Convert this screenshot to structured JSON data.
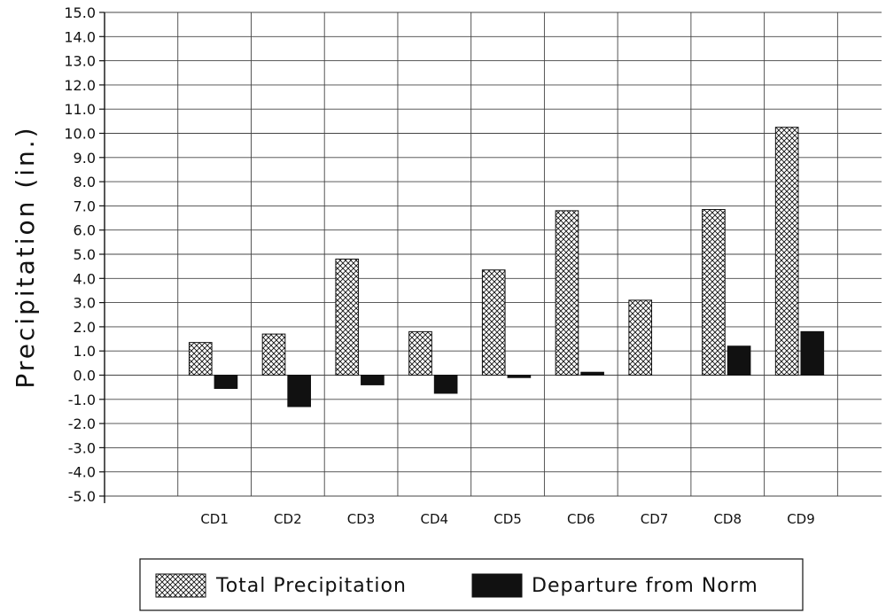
{
  "chart_data": {
    "type": "bar",
    "title": "",
    "xlabel": "",
    "ylabel": "Precipitation (in.)",
    "ylim": [
      -5.0,
      15.0
    ],
    "ytick_step": 1.0,
    "grid": true,
    "legend_position": "bottom",
    "categories": [
      "CD1",
      "CD2",
      "CD3",
      "CD4",
      "CD5",
      "CD6",
      "CD7",
      "CD8",
      "CD9"
    ],
    "series": [
      {
        "name": "Total Precipitation",
        "pattern": "crosshatch",
        "values": [
          1.35,
          1.7,
          4.8,
          1.8,
          4.35,
          6.8,
          3.1,
          6.85,
          10.25
        ]
      },
      {
        "name": "Departure from Norm",
        "pattern": "solid-black",
        "values": [
          -0.55,
          -1.3,
          -0.4,
          -0.75,
          -0.1,
          0.12,
          0.0,
          1.2,
          1.8
        ]
      }
    ]
  }
}
